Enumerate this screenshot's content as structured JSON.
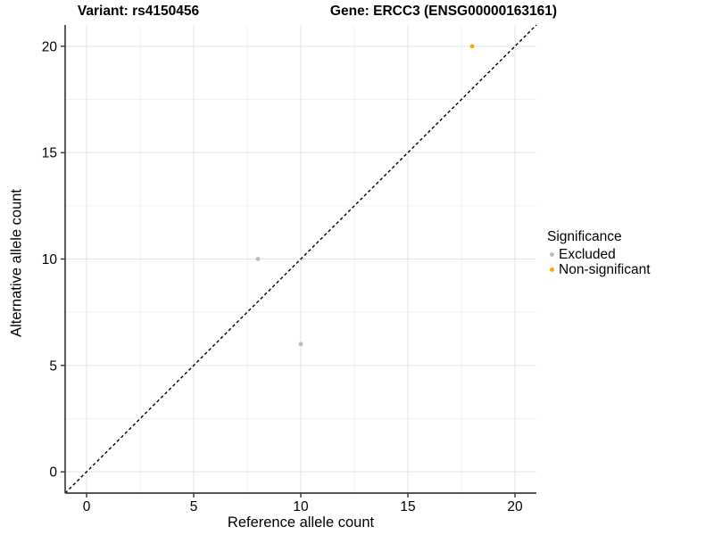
{
  "titles": {
    "variant": "Variant: rs4150456",
    "gene": "Gene: ERCC3 (ENSG00000163161)"
  },
  "legend": {
    "title": "Significance",
    "items": [
      {
        "label": "Excluded",
        "color": "#bdbdbd"
      },
      {
        "label": "Non-significant",
        "color": "#ffa500"
      }
    ]
  },
  "chart_data": {
    "type": "scatter",
    "title": "Variant: rs4150456 | Gene: ERCC3 (ENSG00000163161)",
    "xlabel": "Reference allele count",
    "ylabel": "Alternative allele count",
    "xlim": [
      -1,
      21
    ],
    "ylim": [
      -1,
      21
    ],
    "major_ticks": [
      0,
      5,
      10,
      15,
      20
    ],
    "minor_ticks": [
      2.5,
      7.5,
      12.5,
      17.5
    ],
    "grid": "major-and-minor",
    "legend_position": "right",
    "series": [
      {
        "name": "Excluded",
        "color": "#bdbdbd",
        "points": [
          {
            "x": 8,
            "y": 10
          },
          {
            "x": 10,
            "y": 6
          }
        ]
      },
      {
        "name": "Non-significant",
        "color": "#ffa500",
        "points": [
          {
            "x": 18,
            "y": 20
          }
        ]
      }
    ],
    "reference_line": {
      "type": "identity y=x",
      "style": "dashed",
      "color": "#000000"
    }
  },
  "style": {
    "grid_major_color": "#e3e3e3",
    "grid_minor_color": "#f0f0f0",
    "axis_line_color": "#3f3f3f",
    "tick_color": "#333333",
    "point_radius": 2.4
  }
}
